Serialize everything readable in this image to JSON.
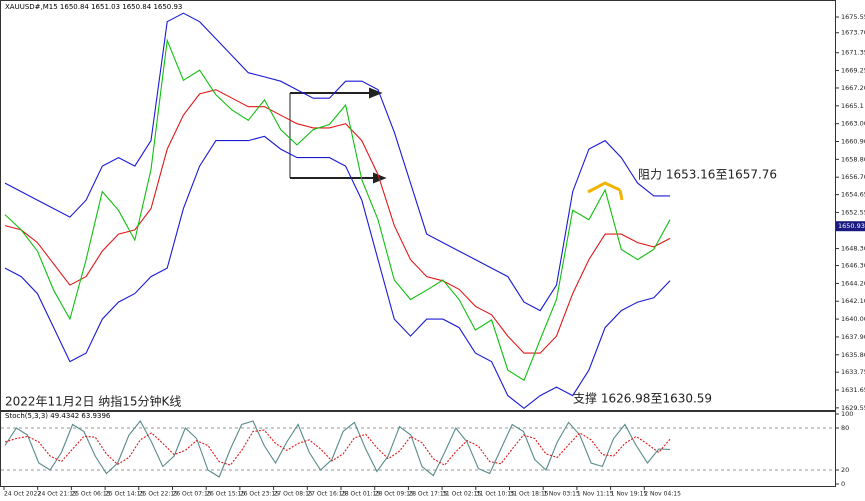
{
  "chart_data": [
    {
      "type": "line",
      "title": "XAUUSD#,M15 1650.84 1651.03 1650.84 1650.93",
      "ylim": [
        1629.3,
        1677.2
      ],
      "yticks": [
        1675.55,
        {
          "value": 1673.7,
          "label": "1673.70"
        },
        1671.35,
        1669.25,
        {
          "value": 1667.2,
          "label": "1667.20"
        },
        1665.1,
        {
          "value": 1663,
          "label": "1663.00"
        },
        {
          "value": 1660.9,
          "label": "1660.90"
        },
        {
          "value": 1658.8,
          "label": "1658.80"
        },
        {
          "value": 1656.7,
          "label": "1656.70"
        },
        1654.65,
        1652.55,
        {
          "value": 1648.3,
          "label": "1648.30"
        },
        {
          "value": 1646.3,
          "label": "1646.30"
        },
        {
          "value": 1644.2,
          "label": "1644.20"
        },
        {
          "value": 1642.1,
          "label": "1642.10"
        },
        {
          "value": 1640,
          "label": "1640.00"
        },
        {
          "value": 1637.9,
          "label": "1637.90"
        },
        {
          "value": 1635.8,
          "label": "1635.80"
        },
        1633.75,
        1631.65,
        1629.55
      ],
      "last_price": 1650.93,
      "annotations": [
        "阻力 1653.16至1657.76",
        "支撑 1626.98至1630.59",
        "2022年11月2日 纳指15分钟K线"
      ],
      "series": [
        {
          "color": "#1a1ad6",
          "values": [
            1656,
            1655,
            1654,
            1653,
            1652,
            1654,
            1658,
            1659,
            1658,
            1661,
            1675,
            1676,
            1675,
            1673,
            1671,
            1669,
            1668.5,
            1668,
            1667,
            1666,
            1666,
            1668,
            1668,
            1667,
            1662,
            1656,
            1650,
            1649,
            1648,
            1647,
            1646,
            1645,
            1642,
            1641,
            1644,
            1655,
            1660,
            1661,
            1659,
            1656,
            1654.5,
            1654.5
          ]
        },
        {
          "color": "#1a1ad6",
          "values": [
            1646,
            1645,
            1643,
            1639,
            1635,
            1636,
            1640,
            1642,
            1643,
            1645,
            1646,
            1653,
            1658,
            1661,
            1661,
            1661,
            1661.5,
            1660,
            1659,
            1659,
            1659,
            1658,
            1654,
            1647,
            1640,
            1638,
            1640,
            1640,
            1639,
            1636,
            1635,
            1631,
            1629.5,
            1631,
            1632,
            1631,
            1634,
            1639,
            1641,
            1642,
            1642.5,
            1644.5
          ]
        },
        {
          "color": "#e01818",
          "values": [
            1651,
            1650.5,
            1649,
            1646.5,
            1644,
            1645,
            1648,
            1650,
            1650.5,
            1653,
            1660,
            1664,
            1666.5,
            1667,
            1666,
            1665,
            1665,
            1664,
            1663,
            1662.5,
            1662.5,
            1663,
            1661,
            1657,
            1651,
            1647,
            1645,
            1644.5,
            1643.5,
            1641.5,
            1640.5,
            1638,
            1636,
            1636,
            1638,
            1643,
            1647,
            1650,
            1650,
            1649,
            1648.5,
            1649.5
          ]
        },
        {
          "color": "#10c010",
          "values": [
            1652.3,
            1650.5,
            1648,
            1643.4,
            1640,
            1647,
            1655,
            1652.8,
            1649.3,
            1657.6,
            1672.8,
            1668.1,
            1669.3,
            1666.4,
            1664.6,
            1663.4,
            1665.8,
            1662.3,
            1660.5,
            1662.3,
            1662.9,
            1665.2,
            1656.4,
            1651.7,
            1644.6,
            1642.3,
            1643.4,
            1644.6,
            1642.3,
            1638.7,
            1639.9,
            1634,
            1632.8,
            1637.6,
            1642.3,
            1652.8,
            1651.7,
            1655.2,
            1648.2,
            1647,
            1648.2,
            1651.7
          ]
        }
      ]
    },
    {
      "type": "line",
      "title": "Stoch(5,3,3) 49.4342 63.9396",
      "ylim": [
        0,
        100
      ],
      "yticks": [
        100,
        80,
        20,
        0
      ],
      "levels": [
        80,
        20
      ],
      "x_labels": [
        "24 Oct 2022",
        "24 Oct 21:15",
        "25 Oct 06:15",
        "25 Oct 14:15",
        "25 Oct 22:15",
        "26 Oct 07:15",
        "26 Oct 15:15",
        "26 Oct 23:15",
        "27 Oct 08:15",
        "27 Oct 16:15",
        "28 Oct 01:15",
        "28 Oct 09:15",
        "28 Oct 17:15",
        "31 Oct 02:15",
        "31 Oct 10:15",
        "31 Oct 18:15",
        "1 Nov 03:15",
        "1 Nov 11:15",
        "1 Nov 19:15",
        "2 Nov 04:15"
      ],
      "series": [
        {
          "color": "#5a8a8a",
          "values": [
            55,
            80,
            70,
            30,
            20,
            45,
            85,
            75,
            40,
            15,
            30,
            70,
            90,
            60,
            25,
            40,
            80,
            65,
            20,
            10,
            50,
            85,
            90,
            55,
            30,
            60,
            85,
            45,
            20,
            35,
            75,
            88,
            50,
            18,
            40,
            82,
            70,
            25,
            12,
            45,
            80,
            60,
            22,
            15,
            50,
            85,
            75,
            35,
            20,
            60,
            88,
            70,
            30,
            25,
            65,
            85,
            55,
            30,
            50,
            49.4342
          ]
        },
        {
          "color": "#e01818",
          "dashed": true,
          "values": [
            60,
            65,
            68,
            60,
            40,
            32,
            50,
            68,
            67,
            43,
            28,
            38,
            63,
            73,
            58,
            42,
            48,
            62,
            55,
            32,
            27,
            48,
            75,
            77,
            58,
            48,
            58,
            63,
            50,
            33,
            43,
            66,
            71,
            52,
            36,
            47,
            68,
            59,
            36,
            27,
            46,
            62,
            54,
            32,
            29,
            50,
            70,
            65,
            43,
            38,
            56,
            73,
            63,
            42,
            40,
            58,
            68,
            57,
            45,
            63.9396
          ]
        }
      ]
    }
  ]
}
